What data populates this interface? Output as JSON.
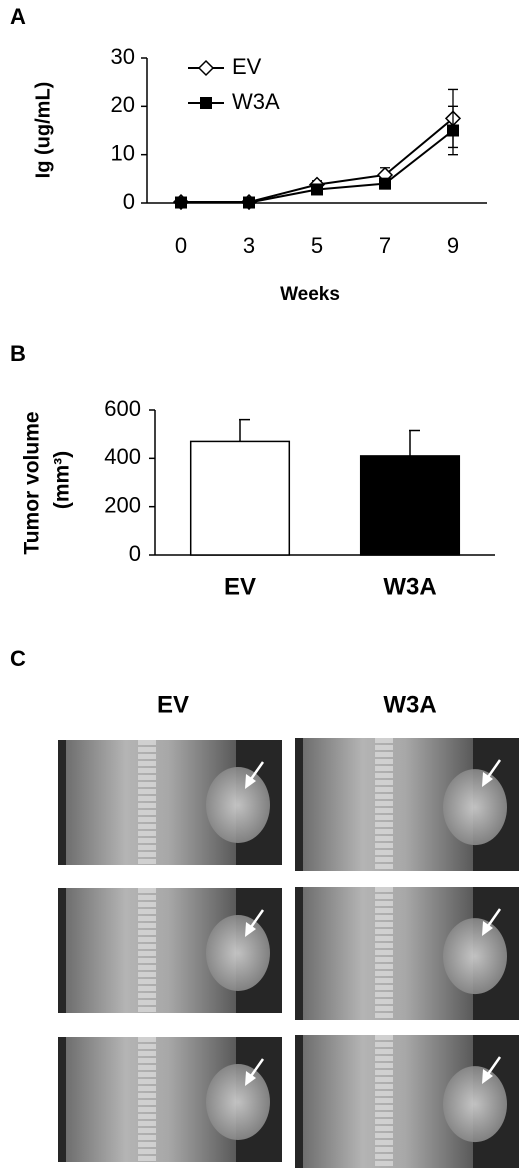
{
  "chart_data": [
    {
      "type": "line",
      "label": "A",
      "categories": [
        "0",
        "3",
        "5",
        "7",
        "9"
      ],
      "series": [
        {
          "name": "EV",
          "color": "#000000",
          "marker": "open-diamond",
          "values": [
            0.2,
            0.2,
            3.8,
            5.8,
            17.5
          ],
          "errors": [
            null,
            null,
            0.8,
            1.5,
            6
          ]
        },
        {
          "name": "W3A",
          "color": "#000000",
          "marker": "filled-square",
          "values": [
            0.1,
            0.1,
            2.8,
            4,
            15
          ],
          "errors": [
            null,
            null,
            0.7,
            1,
            5
          ]
        }
      ],
      "ylabel": "Ig (ug/mL)",
      "xlabel": "Weeks",
      "ylim": [
        0,
        30
      ],
      "yticks": [
        0,
        10,
        20,
        30
      ],
      "legend": "top-left"
    },
    {
      "type": "bar",
      "label": "B",
      "categories": [
        "EV",
        "W3A"
      ],
      "values": [
        470,
        410
      ],
      "errors": [
        90,
        105
      ],
      "colors": [
        "#ffffff",
        "#000000"
      ],
      "ylabel": [
        "Tumor volume",
        "(mm³)"
      ],
      "ylim": [
        0,
        600
      ],
      "yticks": [
        0,
        200,
        400,
        600
      ]
    }
  ],
  "figure_c": {
    "label": "C",
    "columns": [
      "EV",
      "W3A"
    ]
  }
}
